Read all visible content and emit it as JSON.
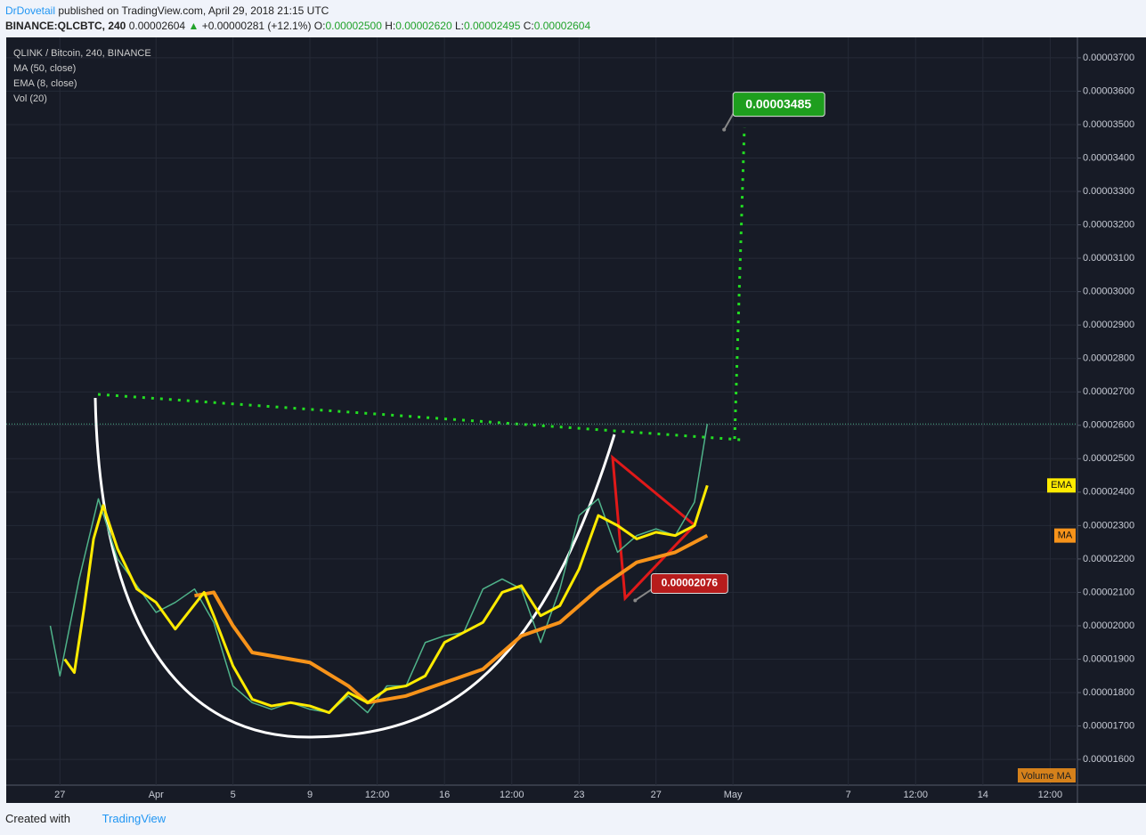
{
  "header": {
    "author": "DrDovetail",
    "published": "published on TradingView.com, April 29, 2018 21:15 UTC",
    "symbol": "BINANCE:QLCBTC, 240",
    "last": "0.00002604",
    "change": "+0.00000281 (+12.1%)",
    "o_label": "O:",
    "o": "0.00002500",
    "h_label": "H:",
    "h": "0.00002620",
    "l_label": "L:",
    "l": "0.00002495",
    "c_label": "C:",
    "c": "0.00002604"
  },
  "chart_data": {
    "type": "line",
    "title": "QLINK / Bitcoin, 240, BINANCE",
    "extra_legend": "Vol (20)",
    "volume_label": "Volume MA",
    "xlim": [
      "2018-03-24 05:00",
      "2018-05-18 22:00"
    ],
    "xticks": [
      {
        "value": "2018-03-27 00:00",
        "label": "27"
      },
      {
        "value": "2018-04-01 00:00",
        "label": "Apr"
      },
      {
        "value": "2018-04-05 00:00",
        "label": "5"
      },
      {
        "value": "2018-04-09 00:00",
        "label": "9"
      },
      {
        "value": "2018-04-12 12:00",
        "label": "12:00"
      },
      {
        "value": "2018-04-16 00:00",
        "label": "16"
      },
      {
        "value": "2018-04-19 12:00",
        "label": "12:00"
      },
      {
        "value": "2018-04-23 00:00",
        "label": "23"
      },
      {
        "value": "2018-04-27 00:00",
        "label": "27"
      },
      {
        "value": "2018-05-01 00:00",
        "label": "May"
      },
      {
        "value": "2018-05-07 00:00",
        "label": "7"
      },
      {
        "value": "2018-05-10 12:00",
        "label": "12:00"
      },
      {
        "value": "2018-05-14 00:00",
        "label": "14"
      },
      {
        "value": "2018-05-17 12:00",
        "label": "12:00"
      }
    ],
    "ylim": [
      1.523e-05,
      3.761e-05
    ],
    "yticks": [
      {
        "value": 1.6e-05,
        "label": "0.00001600"
      },
      {
        "value": 1.7e-05,
        "label": "0.00001700"
      },
      {
        "value": 1.8e-05,
        "label": "0.00001800"
      },
      {
        "value": 1.9e-05,
        "label": "0.00001900"
      },
      {
        "value": 2e-05,
        "label": "0.00002000"
      },
      {
        "value": 2.1e-05,
        "label": "0.00002100"
      },
      {
        "value": 2.2e-05,
        "label": "0.00002200"
      },
      {
        "value": 2.3e-05,
        "label": "0.00002300"
      },
      {
        "value": 2.4e-05,
        "label": "0.00002400"
      },
      {
        "value": 2.5e-05,
        "label": "0.00002500"
      },
      {
        "value": 2.6e-05,
        "label": "0.00002600"
      },
      {
        "value": 2.7e-05,
        "label": "0.00002700"
      },
      {
        "value": 2.8e-05,
        "label": "0.00002800"
      },
      {
        "value": 2.9e-05,
        "label": "0.00002900"
      },
      {
        "value": 3e-05,
        "label": "0.00003000"
      },
      {
        "value": 3.1e-05,
        "label": "0.00003100"
      },
      {
        "value": 3.2e-05,
        "label": "0.00003200"
      },
      {
        "value": 3.3e-05,
        "label": "0.00003300"
      },
      {
        "value": 3.4e-05,
        "label": "0.00003400"
      },
      {
        "value": 3.5e-05,
        "label": "0.00003500"
      },
      {
        "value": 3.6e-05,
        "label": "0.00003600"
      },
      {
        "value": 3.7e-05,
        "label": "0.00003700"
      }
    ],
    "grid": true,
    "price": {
      "color": "#4fb38a",
      "last": 2.604e-05,
      "x": [
        "2018-03-26 12:00",
        "2018-03-27 00:00",
        "2018-03-28 00:00",
        "2018-03-29 00:00",
        "2018-03-30 00:00",
        "2018-03-31 00:00",
        "2018-04-01 00:00",
        "2018-04-02 00:00",
        "2018-04-03 00:00",
        "2018-04-04 00:00",
        "2018-04-05 00:00",
        "2018-04-06 00:00",
        "2018-04-07 00:00",
        "2018-04-08 00:00",
        "2018-04-09 00:00",
        "2018-04-10 00:00",
        "2018-04-11 00:00",
        "2018-04-12 00:00",
        "2018-04-13 00:00",
        "2018-04-14 00:00",
        "2018-04-15 00:00",
        "2018-04-16 00:00",
        "2018-04-17 00:00",
        "2018-04-18 00:00",
        "2018-04-19 00:00",
        "2018-04-20 00:00",
        "2018-04-21 00:00",
        "2018-04-22 00:00",
        "2018-04-23 00:00",
        "2018-04-24 00:00",
        "2018-04-25 00:00",
        "2018-04-26 00:00",
        "2018-04-27 00:00",
        "2018-04-28 00:00",
        "2018-04-29 00:00",
        "2018-04-29 16:00"
      ],
      "values": [
        2e-05,
        1.85e-05,
        2.14e-05,
        2.38e-05,
        2.2e-05,
        2.12e-05,
        2.04e-05,
        2.07e-05,
        2.11e-05,
        2.01e-05,
        1.82e-05,
        1.77e-05,
        1.75e-05,
        1.77e-05,
        1.75e-05,
        1.74e-05,
        1.79e-05,
        1.74e-05,
        1.82e-05,
        1.82e-05,
        1.95e-05,
        1.97e-05,
        1.98e-05,
        2.11e-05,
        2.14e-05,
        2.11e-05,
        1.95e-05,
        2.11e-05,
        2.33e-05,
        2.38e-05,
        2.22e-05,
        2.27e-05,
        2.29e-05,
        2.27e-05,
        2.37e-05,
        2.604e-05
      ]
    },
    "series": [
      {
        "name": "MA (50, close)",
        "tag": "MA",
        "color": "#f7931a",
        "x": [
          "2018-04-03 00:00",
          "2018-04-04 00:00",
          "2018-04-05 00:00",
          "2018-04-06 00:00",
          "2018-04-09 00:00",
          "2018-04-11 00:00",
          "2018-04-12 00:00",
          "2018-04-14 00:00",
          "2018-04-16 00:00",
          "2018-04-18 00:00",
          "2018-04-20 00:00",
          "2018-04-22 00:00",
          "2018-04-24 00:00",
          "2018-04-26 00:00",
          "2018-04-28 00:00",
          "2018-04-29 16:00"
        ],
        "values": [
          2.09e-05,
          2.1e-05,
          2e-05,
          1.92e-05,
          1.89e-05,
          1.82e-05,
          1.77e-05,
          1.79e-05,
          1.83e-05,
          1.87e-05,
          1.97e-05,
          2.01e-05,
          2.11e-05,
          2.19e-05,
          2.22e-05,
          2.27e-05
        ]
      },
      {
        "name": "EMA (8, close)",
        "tag": "EMA",
        "color": "#ffeb00",
        "x": [
          "2018-03-27 06:00",
          "2018-03-27 18:00",
          "2018-03-28 06:00",
          "2018-03-28 18:00",
          "2018-03-29 06:00",
          "2018-03-30 00:00",
          "2018-03-31 00:00",
          "2018-04-01 00:00",
          "2018-04-02 00:00",
          "2018-04-03 12:00",
          "2018-04-04 00:00",
          "2018-04-05 00:00",
          "2018-04-06 00:00",
          "2018-04-07 00:00",
          "2018-04-08 00:00",
          "2018-04-09 00:00",
          "2018-04-10 00:00",
          "2018-04-11 00:00",
          "2018-04-12 00:00",
          "2018-04-13 00:00",
          "2018-04-14 00:00",
          "2018-04-15 00:00",
          "2018-04-16 00:00",
          "2018-04-17 00:00",
          "2018-04-18 00:00",
          "2018-04-19 00:00",
          "2018-04-20 00:00",
          "2018-04-21 00:00",
          "2018-04-22 00:00",
          "2018-04-23 00:00",
          "2018-04-24 00:00",
          "2018-04-25 00:00",
          "2018-04-26 00:00",
          "2018-04-27 00:00",
          "2018-04-28 00:00",
          "2018-04-29 00:00",
          "2018-04-29 16:00"
        ],
        "values": [
          1.9e-05,
          1.86e-05,
          2.05e-05,
          2.26e-05,
          2.36e-05,
          2.23e-05,
          2.11e-05,
          2.07e-05,
          1.99e-05,
          2.1e-05,
          2.03e-05,
          1.88e-05,
          1.78e-05,
          1.76e-05,
          1.77e-05,
          1.76e-05,
          1.74e-05,
          1.8e-05,
          1.77e-05,
          1.81e-05,
          1.82e-05,
          1.85e-05,
          1.95e-05,
          1.98e-05,
          2.01e-05,
          2.1e-05,
          2.12e-05,
          2.03e-05,
          2.06e-05,
          2.17e-05,
          2.33e-05,
          2.3e-05,
          2.26e-05,
          2.28e-05,
          2.27e-05,
          2.3e-05,
          2.42e-05
        ]
      }
    ],
    "annotations": [
      {
        "x": "2018-04-30 13:00",
        "value": 3.485e-05,
        "color": "#1e9e1e"
      },
      {
        "x": "2018-04-25 22:00",
        "value": 2.076e-05,
        "color": "#b71c1c"
      }
    ]
  },
  "footer": {
    "created": "Created with",
    "brand": "TradingView"
  }
}
